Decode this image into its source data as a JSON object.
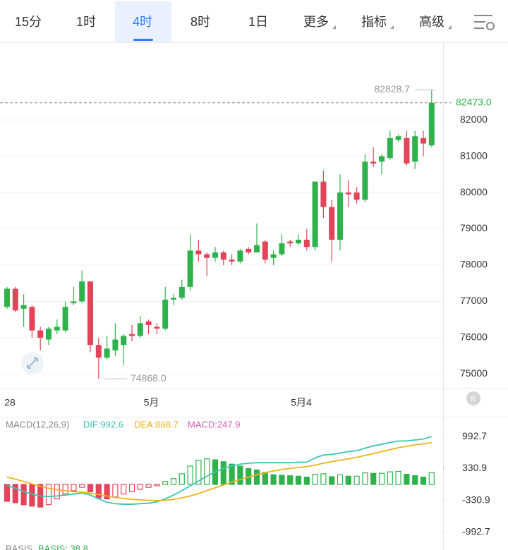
{
  "tabs": [
    "15分",
    "1时",
    "4时",
    "8时",
    "1日",
    "更多",
    "指标",
    "高级"
  ],
  "active_tab": 2,
  "chart_data": [
    {
      "type": "candlestick",
      "categories": [
        "28",
        null,
        null,
        null,
        null,
        null,
        null,
        null,
        null,
        null,
        null,
        null,
        null,
        null,
        null,
        null,
        null,
        "5月",
        null,
        null,
        null,
        null,
        null,
        null,
        null,
        null,
        null,
        null,
        null,
        null,
        null,
        null,
        null,
        null,
        null,
        "5月4",
        null,
        null,
        null,
        null,
        null,
        null,
        null,
        null,
        null,
        null,
        null,
        null,
        null,
        null,
        null,
        null
      ],
      "open": [
        76850,
        77350,
        76800,
        76850,
        76200,
        75950,
        76200,
        76200,
        76950,
        77000,
        77550,
        75800,
        75450,
        75650,
        75800,
        76100,
        76050,
        76450,
        76300,
        76250,
        77050,
        77100,
        77400,
        78400,
        78300,
        78200,
        78350,
        78150,
        78100,
        78450,
        78350,
        78650,
        78200,
        78300,
        78650,
        78600,
        78700,
        78500,
        80300,
        79600,
        78700,
        80000,
        80000,
        79800,
        80850,
        80850,
        80950,
        81450,
        81500,
        80850,
        81500,
        81300
      ],
      "close": [
        77350,
        76750,
        76900,
        76200,
        76000,
        76250,
        76300,
        76850,
        77000,
        77550,
        75800,
        75450,
        75700,
        75950,
        76050,
        76050,
        76400,
        76350,
        76250,
        77050,
        77100,
        77400,
        78400,
        78300,
        78200,
        78350,
        78150,
        78100,
        78400,
        78350,
        78550,
        78150,
        78300,
        78600,
        78600,
        78700,
        78500,
        80300,
        79600,
        78700,
        80000,
        79950,
        79800,
        80850,
        80800,
        81000,
        81500,
        81550,
        80800,
        81550,
        81350,
        82473
      ],
      "high": [
        77400,
        77400,
        77200,
        76900,
        76300,
        76300,
        76500,
        77000,
        77400,
        77850,
        77550,
        76000,
        76050,
        76400,
        76100,
        76350,
        76600,
        76500,
        76400,
        77400,
        77200,
        77600,
        78850,
        78700,
        78350,
        78500,
        78400,
        78300,
        78450,
        78500,
        79150,
        78700,
        78400,
        78850,
        78700,
        78850,
        79000,
        80300,
        80600,
        79800,
        80500,
        80350,
        80150,
        81050,
        81250,
        81050,
        81700,
        81600,
        81700,
        81700,
        81700,
        82828.7
      ],
      "low": [
        76800,
        76700,
        76300,
        76000,
        75650,
        75800,
        76100,
        76150,
        76900,
        76950,
        75600,
        74868,
        75400,
        75500,
        75250,
        75900,
        76000,
        76100,
        76100,
        76200,
        76900,
        77050,
        77300,
        78100,
        77700,
        78100,
        78000,
        78000,
        78050,
        78300,
        78350,
        78050,
        78000,
        78250,
        78500,
        78550,
        78400,
        78400,
        79300,
        78100,
        78400,
        79600,
        79700,
        79750,
        80700,
        80500,
        80900,
        81400,
        80750,
        80650,
        81000,
        81250
      ],
      "up_color": "#2fb24c",
      "down_color": "#e2445a",
      "ylim": [
        74620,
        84100
      ],
      "yticks": [
        75000,
        76000,
        77000,
        78000,
        79000,
        80000,
        81000,
        82000
      ],
      "grid": true,
      "last_price": {
        "value": 82473,
        "label": "82473.0"
      },
      "max_marker": 82828.7,
      "min_marker": {
        "value": 74868,
        "label": "74868.0"
      }
    },
    {
      "type": "macd",
      "title": "MACD(12,26,9)",
      "ylim": [
        -1140,
        1125
      ],
      "yticks": [
        992.7,
        330.9,
        -330.9,
        -992.7
      ],
      "series": [
        {
          "name": "DIF:992.6",
          "color": "#3cc4b4",
          "kind": "line",
          "values": [
            -20,
            -80,
            -150,
            -200,
            -240,
            -250,
            -240,
            -220,
            -200,
            -180,
            -220,
            -300,
            -370,
            -400,
            -410,
            -410,
            -400,
            -390,
            -360,
            -300,
            -220,
            -130,
            -30,
            70,
            170,
            260,
            330,
            380,
            420,
            440,
            450,
            450,
            450,
            450,
            450,
            460,
            460,
            550,
            610,
            620,
            650,
            680,
            700,
            750,
            800,
            830,
            870,
            900,
            900,
            920,
            940,
            992.6
          ]
        },
        {
          "name": "DEA:868.7",
          "color": "#eeb31b",
          "kind": "line",
          "values": [
            150,
            110,
            60,
            10,
            -40,
            -80,
            -110,
            -130,
            -150,
            -160,
            -180,
            -210,
            -240,
            -270,
            -290,
            -310,
            -320,
            -330,
            -335,
            -330,
            -310,
            -280,
            -240,
            -190,
            -130,
            -70,
            -10,
            50,
            100,
            150,
            200,
            240,
            280,
            310,
            330,
            350,
            370,
            400,
            440,
            470,
            500,
            530,
            560,
            600,
            640,
            680,
            720,
            760,
            790,
            820,
            840,
            868.7
          ]
        },
        {
          "name": "MACD:247.9",
          "color": "#d45fb4",
          "kind": "histogram",
          "values": [
            -350,
            -380,
            -420,
            -450,
            -470,
            -420,
            -300,
            -200,
            -130,
            -60,
            -150,
            -280,
            -300,
            -260,
            -200,
            -150,
            -100,
            -60,
            -30,
            60,
            120,
            220,
            380,
            500,
            530,
            510,
            470,
            420,
            380,
            330,
            300,
            250,
            200,
            190,
            180,
            170,
            150,
            210,
            220,
            160,
            200,
            170,
            170,
            240,
            230,
            230,
            260,
            270,
            210,
            180,
            150,
            247.9
          ]
        }
      ],
      "up_color": "#2fb24c",
      "down_color": "#e2445a"
    }
  ],
  "footer_indicator": {
    "name": "BASIS",
    "value_text": "BASIS: 38.8"
  }
}
